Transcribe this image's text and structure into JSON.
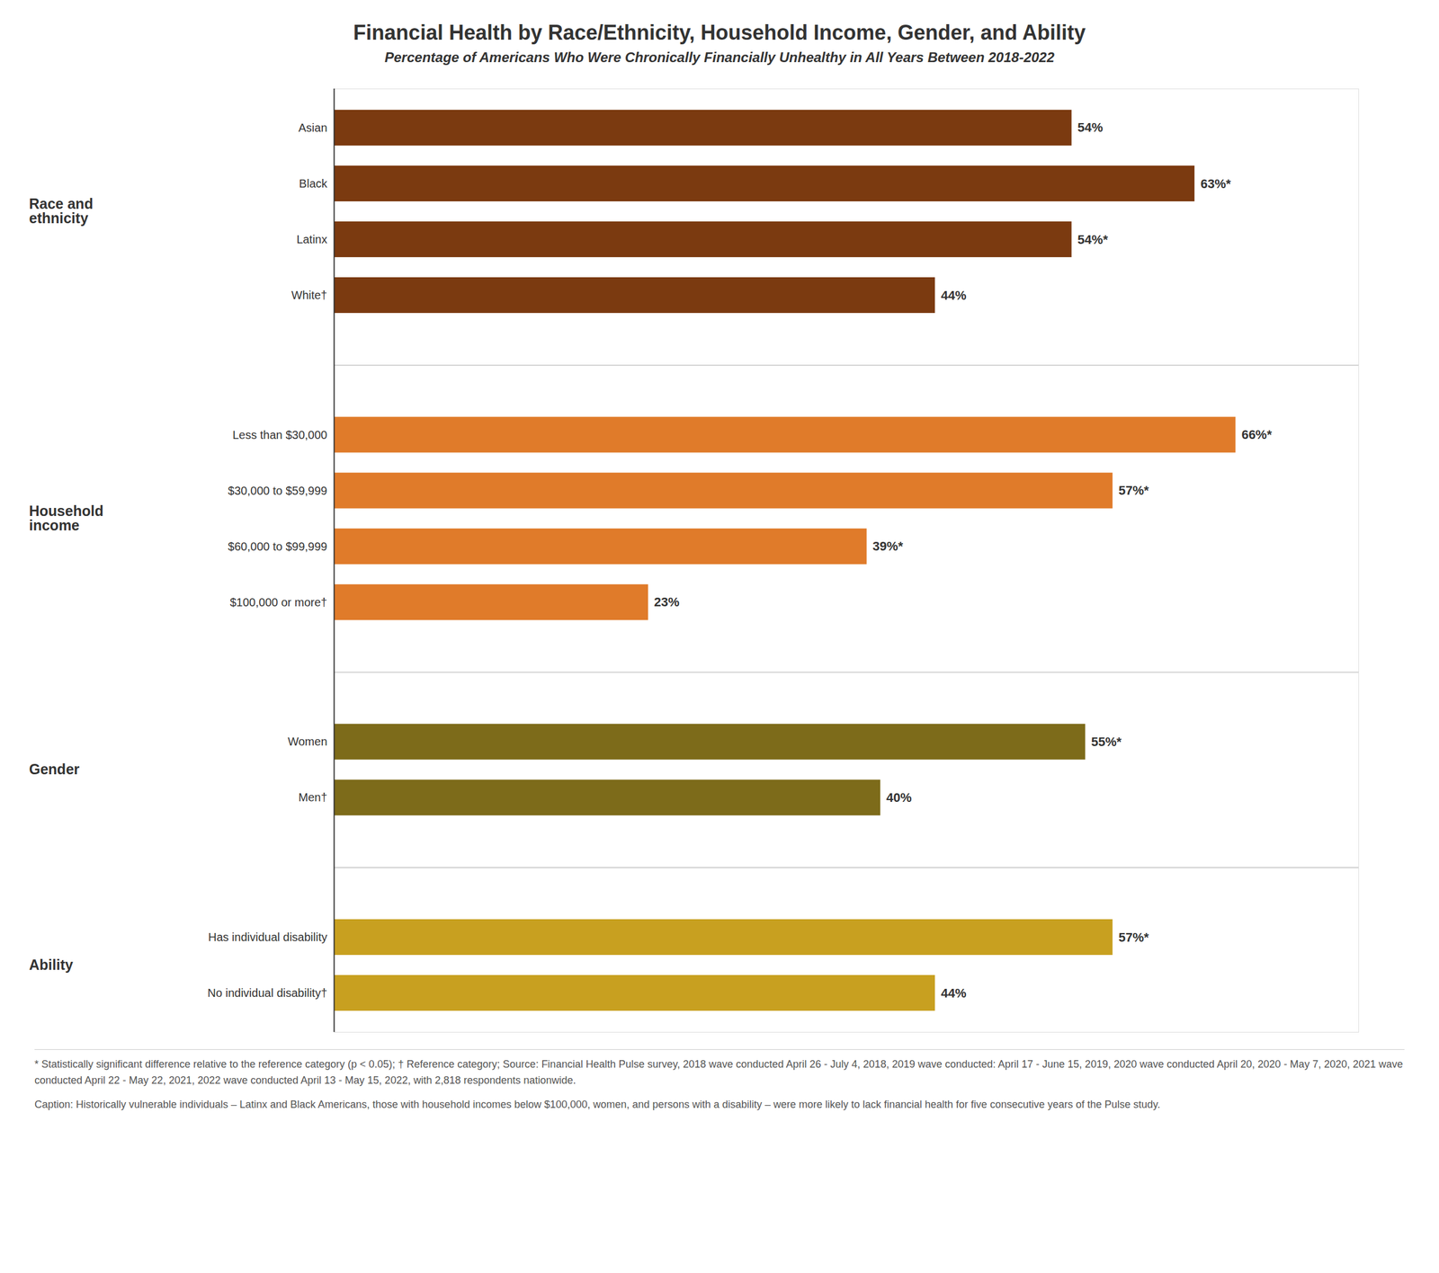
{
  "chart_data": {
    "type": "bar",
    "orientation": "horizontal",
    "title": "Financial Health by Race/Ethnicity, Household Income, Gender, and Ability",
    "subtitle": "Percentage of Americans Who Were Chronically Financially Unhealthy in All Years Between 2018-2022",
    "annotations": [
      "* Statistically significant difference relative to the reference category (p < 0.05); † Reference category; Source: Financial Health Pulse survey, 2018 wave conducted April 26 - July 4, 2018, 2019 wave conducted: April 17 - June 15, 2019, 2020 wave conducted April 20, 2020 - May 7, 2020, 2021 wave conducted April 22 - May 22, 2021, 2022 wave conducted April 13 - May 15, 2022, with 2,818 respondents nationwide.",
      "Caption: Historically vulnerable individuals – Latinx and Black Americans, those with household incomes below $100,000, women, and persons with a disability – were more likely to lack financial health for five consecutive years of the Pulse study."
    ],
    "sections": [
      {
        "label": "Race and\nethnicity",
        "color": "#7b3a10",
        "categories": [
          "Asian",
          "Black",
          "Latinx",
          "White†"
        ],
        "values": [
          54,
          63,
          54,
          44
        ],
        "value_labels": [
          "54%",
          "63%*",
          "54%*",
          "44%"
        ]
      },
      {
        "label": "Household\nincome",
        "color": "#e07b2a",
        "categories": [
          "Less than $30,000",
          "$30,000 to $59,999",
          "$60,000 to $99,999",
          "$100,000 or more†"
        ],
        "values": [
          66,
          57,
          39,
          23
        ],
        "value_labels": [
          "66%*",
          "57%*",
          "39%*",
          "23%"
        ]
      },
      {
        "label": "Gender",
        "color": "#7d6b1a",
        "categories": [
          "Women",
          "Men†"
        ],
        "values": [
          55,
          40
        ],
        "value_labels": [
          "55%*",
          "40%"
        ]
      },
      {
        "label": "Ability",
        "color": "#c8a020",
        "categories": [
          "Has individual disability",
          "No individual disability†"
        ],
        "values": [
          57,
          44
        ],
        "value_labels": [
          "57%*",
          "44%"
        ]
      }
    ],
    "xlim": [
      0,
      75
    ],
    "tick_labels": false,
    "grid": false,
    "data_labels": true
  }
}
